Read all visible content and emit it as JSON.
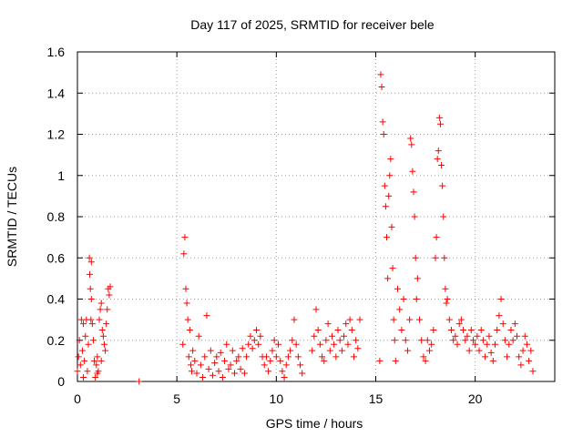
{
  "chart_data": {
    "type": "scatter",
    "title": "Day 117 of 2025, SRMTID for receiver bele",
    "xlabel": "GPS time / hours",
    "ylabel": "SRMTID / TECUs",
    "xlim": [
      0,
      24
    ],
    "ylim": [
      0,
      1.6
    ],
    "xticks": [
      0,
      5,
      10,
      15,
      20
    ],
    "xtick_labels": [
      "0",
      "5",
      "10",
      "15",
      "20"
    ],
    "yticks": [
      0,
      0.2,
      0.4,
      0.6,
      0.8,
      1,
      1.2,
      1.4,
      1.6
    ],
    "ytick_labels": [
      "0",
      "0.2",
      "0.4",
      "0.6",
      "0.8",
      "1",
      "1.2",
      "1.4",
      "1.6"
    ],
    "grid": true,
    "marker": "+",
    "color": "#ff0000",
    "series": [
      {
        "name": "SRMTID",
        "points": [
          [
            0.0,
            0.05
          ],
          [
            0.05,
            0.12
          ],
          [
            0.1,
            0.2
          ],
          [
            0.15,
            0.08
          ],
          [
            0.2,
            0.3
          ],
          [
            0.25,
            0.15
          ],
          [
            0.3,
            0.28
          ],
          [
            0.35,
            0.1
          ],
          [
            0.4,
            0.22
          ],
          [
            0.45,
            0.3
          ],
          [
            0.5,
            0.05
          ],
          [
            0.55,
            0.18
          ],
          [
            0.6,
            0.6
          ],
          [
            0.62,
            0.52
          ],
          [
            0.65,
            0.45
          ],
          [
            0.68,
            0.3
          ],
          [
            0.7,
            0.4
          ],
          [
            0.75,
            0.28
          ],
          [
            0.8,
            0.2
          ],
          [
            0.85,
            0.1
          ],
          [
            0.9,
            0.02
          ],
          [
            0.95,
            0.08
          ],
          [
            1.0,
            0.12
          ],
          [
            1.05,
            0.05
          ],
          [
            1.1,
            0.3
          ],
          [
            1.15,
            0.35
          ],
          [
            1.2,
            0.38
          ],
          [
            1.25,
            0.25
          ],
          [
            1.3,
            0.22
          ],
          [
            1.35,
            0.18
          ],
          [
            1.4,
            0.15
          ],
          [
            1.45,
            0.28
          ],
          [
            1.5,
            0.35
          ],
          [
            1.55,
            0.45
          ],
          [
            1.6,
            0.42
          ],
          [
            1.65,
            0.46
          ],
          [
            0.3,
            0.02
          ],
          [
            0.7,
            0.58
          ],
          [
            1.0,
            0.04
          ],
          [
            1.2,
            0.1
          ],
          [
            3.1,
            0.0
          ],
          [
            5.3,
            0.18
          ],
          [
            5.35,
            0.62
          ],
          [
            5.4,
            0.7
          ],
          [
            5.45,
            0.45
          ],
          [
            5.5,
            0.38
          ],
          [
            5.55,
            0.3
          ],
          [
            5.6,
            0.12
          ],
          [
            5.65,
            0.25
          ],
          [
            5.7,
            0.08
          ],
          [
            5.75,
            0.05
          ],
          [
            5.8,
            0.15
          ],
          [
            5.9,
            0.1
          ],
          [
            6.0,
            0.04
          ],
          [
            6.1,
            0.22
          ],
          [
            6.2,
            0.08
          ],
          [
            6.3,
            0.02
          ],
          [
            6.4,
            0.12
          ],
          [
            6.5,
            0.32
          ],
          [
            6.6,
            0.06
          ],
          [
            6.7,
            0.15
          ],
          [
            6.8,
            0.03
          ],
          [
            6.9,
            0.09
          ],
          [
            7.0,
            0.12
          ],
          [
            7.1,
            0.05
          ],
          [
            7.2,
            0.14
          ],
          [
            7.3,
            0.02
          ],
          [
            7.4,
            0.1
          ],
          [
            7.5,
            0.18
          ],
          [
            7.6,
            0.06
          ],
          [
            7.7,
            0.08
          ],
          [
            7.8,
            0.15
          ],
          [
            7.9,
            0.04
          ],
          [
            8.0,
            0.1
          ],
          [
            8.1,
            0.12
          ],
          [
            8.2,
            0.06
          ],
          [
            8.3,
            0.16
          ],
          [
            8.4,
            0.04
          ],
          [
            8.5,
            0.12
          ],
          [
            8.6,
            0.18
          ],
          [
            8.7,
            0.22
          ],
          [
            8.8,
            0.16
          ],
          [
            8.9,
            0.2
          ],
          [
            9.0,
            0.25
          ],
          [
            9.1,
            0.18
          ],
          [
            9.2,
            0.22
          ],
          [
            9.3,
            0.12
          ],
          [
            9.4,
            0.08
          ],
          [
            9.5,
            0.12
          ],
          [
            9.6,
            0.05
          ],
          [
            9.7,
            0.1
          ],
          [
            9.8,
            0.15
          ],
          [
            9.9,
            0.2
          ],
          [
            10.0,
            0.12
          ],
          [
            10.1,
            0.18
          ],
          [
            10.2,
            0.1
          ],
          [
            10.3,
            0.05
          ],
          [
            10.4,
            0.02
          ],
          [
            10.5,
            0.08
          ],
          [
            10.6,
            0.12
          ],
          [
            10.7,
            0.15
          ],
          [
            10.8,
            0.2
          ],
          [
            10.9,
            0.3
          ],
          [
            11.0,
            0.18
          ],
          [
            11.1,
            0.12
          ],
          [
            11.2,
            0.08
          ],
          [
            11.3,
            0.04
          ],
          [
            11.8,
            0.15
          ],
          [
            11.9,
            0.22
          ],
          [
            12.0,
            0.35
          ],
          [
            12.1,
            0.25
          ],
          [
            12.2,
            0.18
          ],
          [
            12.3,
            0.12
          ],
          [
            12.4,
            0.1
          ],
          [
            12.5,
            0.2
          ],
          [
            12.6,
            0.28
          ],
          [
            12.7,
            0.15
          ],
          [
            12.8,
            0.22
          ],
          [
            12.9,
            0.18
          ],
          [
            13.0,
            0.12
          ],
          [
            13.1,
            0.25
          ],
          [
            13.2,
            0.2
          ],
          [
            13.3,
            0.15
          ],
          [
            13.4,
            0.22
          ],
          [
            13.5,
            0.28
          ],
          [
            13.6,
            0.18
          ],
          [
            13.7,
            0.3
          ],
          [
            13.8,
            0.25
          ],
          [
            13.9,
            0.12
          ],
          [
            14.0,
            0.2
          ],
          [
            14.1,
            0.16
          ],
          [
            14.2,
            0.3
          ],
          [
            15.2,
            0.1
          ],
          [
            15.25,
            1.49
          ],
          [
            15.3,
            1.43
          ],
          [
            15.35,
            1.26
          ],
          [
            15.4,
            1.2
          ],
          [
            15.45,
            0.95
          ],
          [
            15.5,
            0.85
          ],
          [
            15.55,
            0.7
          ],
          [
            15.6,
            0.5
          ],
          [
            15.65,
            0.9
          ],
          [
            15.7,
            1.0
          ],
          [
            15.75,
            1.08
          ],
          [
            15.8,
            0.75
          ],
          [
            15.85,
            0.55
          ],
          [
            15.9,
            0.3
          ],
          [
            15.95,
            0.2
          ],
          [
            16.0,
            0.1
          ],
          [
            16.1,
            0.45
          ],
          [
            16.2,
            0.35
          ],
          [
            16.3,
            0.25
          ],
          [
            16.4,
            0.4
          ],
          [
            16.5,
            0.2
          ],
          [
            16.6,
            0.15
          ],
          [
            16.7,
            0.3
          ],
          [
            16.75,
            1.18
          ],
          [
            16.8,
            1.15
          ],
          [
            16.85,
            1.02
          ],
          [
            16.9,
            0.92
          ],
          [
            16.95,
            0.8
          ],
          [
            17.0,
            0.6
          ],
          [
            17.05,
            0.4
          ],
          [
            17.1,
            0.5
          ],
          [
            17.2,
            0.3
          ],
          [
            17.3,
            0.2
          ],
          [
            17.4,
            0.12
          ],
          [
            17.5,
            0.1
          ],
          [
            17.6,
            0.2
          ],
          [
            17.7,
            0.15
          ],
          [
            17.8,
            0.18
          ],
          [
            17.9,
            0.25
          ],
          [
            18.0,
            0.6
          ],
          [
            18.05,
            0.7
          ],
          [
            18.1,
            1.08
          ],
          [
            18.15,
            1.12
          ],
          [
            18.2,
            1.28
          ],
          [
            18.25,
            1.25
          ],
          [
            18.3,
            1.05
          ],
          [
            18.35,
            0.95
          ],
          [
            18.4,
            0.8
          ],
          [
            18.45,
            0.6
          ],
          [
            18.5,
            0.45
          ],
          [
            18.55,
            0.38
          ],
          [
            18.6,
            0.4
          ],
          [
            18.7,
            0.3
          ],
          [
            18.8,
            0.25
          ],
          [
            18.9,
            0.2
          ],
          [
            19.0,
            0.22
          ],
          [
            19.1,
            0.18
          ],
          [
            19.2,
            0.28
          ],
          [
            19.3,
            0.3
          ],
          [
            19.4,
            0.25
          ],
          [
            19.5,
            0.2
          ],
          [
            19.6,
            0.22
          ],
          [
            19.7,
            0.15
          ],
          [
            19.8,
            0.25
          ],
          [
            19.9,
            0.2
          ],
          [
            20.0,
            0.18
          ],
          [
            20.1,
            0.22
          ],
          [
            20.2,
            0.15
          ],
          [
            20.3,
            0.25
          ],
          [
            20.4,
            0.2
          ],
          [
            20.5,
            0.12
          ],
          [
            20.6,
            0.18
          ],
          [
            20.7,
            0.22
          ],
          [
            20.8,
            0.14
          ],
          [
            20.9,
            0.1
          ],
          [
            21.0,
            0.18
          ],
          [
            21.1,
            0.25
          ],
          [
            21.2,
            0.32
          ],
          [
            21.3,
            0.4
          ],
          [
            21.4,
            0.28
          ],
          [
            21.5,
            0.2
          ],
          [
            21.6,
            0.12
          ],
          [
            21.7,
            0.18
          ],
          [
            21.8,
            0.25
          ],
          [
            21.9,
            0.2
          ],
          [
            22.0,
            0.28
          ],
          [
            22.1,
            0.22
          ],
          [
            22.2,
            0.12
          ],
          [
            22.3,
            0.08
          ],
          [
            22.4,
            0.15
          ],
          [
            22.5,
            0.22
          ],
          [
            22.6,
            0.18
          ],
          [
            22.7,
            0.1
          ],
          [
            22.8,
            0.15
          ],
          [
            22.9,
            0.05
          ]
        ]
      }
    ]
  }
}
